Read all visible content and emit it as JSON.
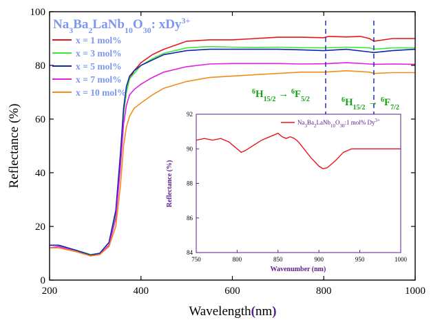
{
  "chart_data": [
    {
      "type": "line",
      "title": "Na3Ba2LaNb10O30: xDy3+",
      "xlabel": "Wavelength(nm)",
      "ylabel": "Reflectance (%)",
      "xlim": [
        200,
        1000
      ],
      "ylim": [
        0,
        100
      ],
      "xticks": [
        "200",
        "400",
        "600",
        "800",
        "1000"
      ],
      "yticks": [
        "0",
        "20",
        "40",
        "60",
        "80",
        "100"
      ],
      "legend_position": "top-left",
      "series": [
        {
          "name": "x = 1 mol%",
          "color": "#e8141c",
          "x": [
            200,
            220,
            260,
            290,
            310,
            330,
            345,
            355,
            362,
            368,
            375,
            385,
            400,
            425,
            450,
            500,
            550,
            600,
            650,
            700,
            750,
            800,
            810,
            850,
            880,
            900,
            910,
            950,
            1000
          ],
          "y": [
            13,
            13,
            11,
            9.5,
            10,
            14,
            25,
            45,
            62,
            70,
            75,
            78,
            81,
            84,
            86,
            89,
            89.5,
            89.5,
            90,
            90.5,
            90.5,
            90.3,
            90.8,
            90.6,
            90.8,
            90,
            89,
            90,
            90
          ]
        },
        {
          "name": "x = 3 mol%",
          "color": "#3ce83c",
          "x": [
            200,
            220,
            260,
            290,
            310,
            330,
            345,
            355,
            362,
            368,
            375,
            385,
            400,
            425,
            450,
            500,
            550,
            600,
            650,
            700,
            750,
            800,
            850,
            900,
            910,
            950,
            1000
          ],
          "y": [
            13,
            13,
            11,
            9.5,
            10,
            14,
            25,
            45,
            62,
            70,
            75,
            77,
            80,
            82.5,
            84.5,
            86.5,
            87,
            86.8,
            86.7,
            86.8,
            86.6,
            86.5,
            86.8,
            86.5,
            86,
            86.5,
            86.5
          ]
        },
        {
          "name": "x = 5 mol%",
          "color": "#1520b0",
          "x": [
            200,
            220,
            260,
            290,
            310,
            330,
            345,
            355,
            362,
            368,
            375,
            385,
            400,
            425,
            450,
            500,
            550,
            600,
            650,
            700,
            750,
            800,
            850,
            900,
            910,
            950,
            1000
          ],
          "y": [
            13,
            13,
            11,
            9.3,
            10,
            14,
            26,
            47,
            64,
            72,
            76,
            78,
            80,
            82,
            84,
            85.5,
            86,
            86,
            86,
            86,
            85.8,
            85.5,
            86,
            85,
            84.8,
            85.5,
            86
          ]
        },
        {
          "name": "x = 7 mol%",
          "color": "#e020e0",
          "x": [
            200,
            220,
            260,
            290,
            310,
            330,
            345,
            355,
            362,
            368,
            375,
            385,
            400,
            425,
            450,
            500,
            550,
            600,
            650,
            700,
            750,
            800,
            850,
            900,
            910,
            950,
            1000
          ],
          "y": [
            12,
            12.5,
            10.5,
            9,
            9.5,
            13,
            23,
            42,
            58,
            65,
            69,
            71,
            73,
            75.5,
            77.5,
            79.5,
            80.5,
            80.7,
            80.7,
            80.7,
            80.5,
            80.6,
            81,
            80.5,
            80.4,
            80.5,
            80.4
          ]
        },
        {
          "name": "x = 10 mol%",
          "color": "#f28c1e",
          "x": [
            200,
            220,
            260,
            290,
            310,
            330,
            345,
            355,
            362,
            368,
            375,
            385,
            400,
            425,
            450,
            500,
            550,
            600,
            650,
            700,
            750,
            800,
            850,
            900,
            910,
            950,
            1000
          ],
          "y": [
            12,
            12,
            10.5,
            9,
            9.5,
            12.5,
            20,
            35,
            50,
            57,
            61,
            64,
            66,
            69,
            71.5,
            74,
            75.5,
            76,
            76.5,
            77,
            77.5,
            77.5,
            78,
            77.5,
            77,
            77.3,
            77.3
          ]
        }
      ],
      "annotations": [
        {
          "text": "6H15/2 → 6F5/2",
          "x": 805
        },
        {
          "text": "6H15/2 → 6F7/2",
          "x": 910
        }
      ]
    },
    {
      "type": "line",
      "title": "",
      "xlabel": "Wavenumber (nm)",
      "ylabel": "Reflectance (%)",
      "xlim": [
        750,
        1000
      ],
      "ylim": [
        84,
        92
      ],
      "xticks": [
        "750",
        "800",
        "850",
        "900",
        "950",
        "1000"
      ],
      "yticks": [
        "84",
        "86",
        "88",
        "90",
        "92"
      ],
      "legend_position": "top-right",
      "series": [
        {
          "name": "Na3Ba2LaNb10O30:1 mol% Dy3+",
          "color": "#e8141c",
          "x": [
            750,
            760,
            770,
            780,
            790,
            800,
            805,
            810,
            820,
            830,
            840,
            845,
            850,
            855,
            860,
            865,
            870,
            875,
            880,
            890,
            900,
            905,
            910,
            920,
            930,
            940,
            950,
            960,
            970,
            980,
            990,
            1000
          ],
          "y": [
            90.5,
            90.6,
            90.5,
            90.6,
            90.4,
            90.0,
            89.8,
            89.9,
            90.2,
            90.5,
            90.7,
            90.8,
            90.9,
            90.7,
            90.6,
            90.7,
            90.6,
            90.4,
            90.1,
            89.5,
            89.0,
            88.85,
            88.9,
            89.3,
            89.8,
            90.0,
            90.0,
            90.0,
            90.0,
            90.0,
            90.0,
            90.0
          ]
        }
      ]
    }
  ]
}
